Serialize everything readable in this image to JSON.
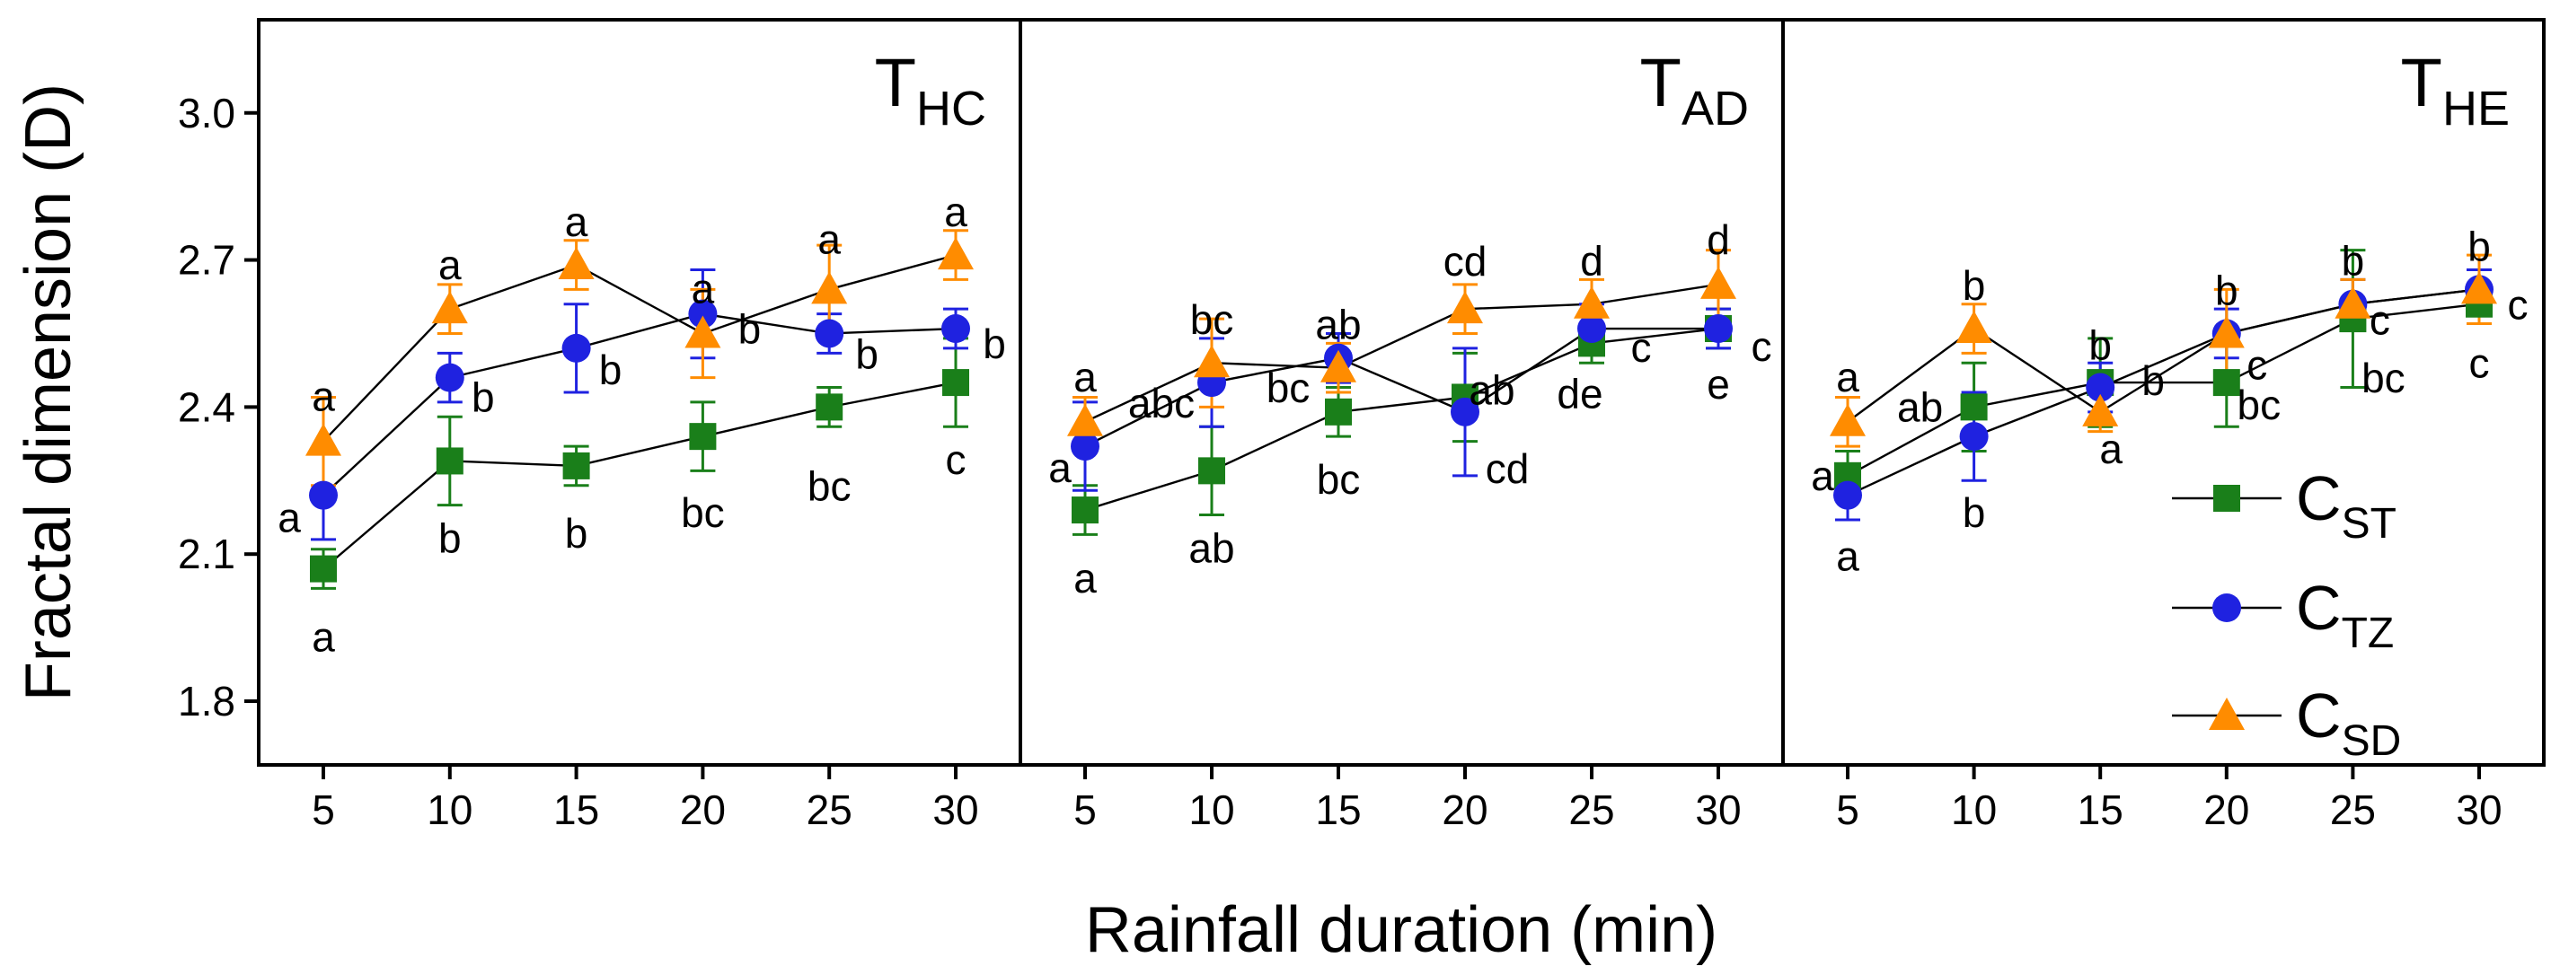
{
  "chart_data": {
    "type": "scatter",
    "ylabel": "Fractal dimension (D)",
    "xlabel": "Rainfall duration (min)",
    "ylim": [
      1.67,
      3.19
    ],
    "yticks": [
      1.8,
      2.1,
      2.4,
      2.7,
      3.0
    ],
    "ytick_labels": [
      "1.8",
      "2.1",
      "2.4",
      "2.7",
      "3.0"
    ],
    "x": [
      5,
      10,
      15,
      20,
      25,
      30
    ],
    "xtick_labels": [
      "5",
      "10",
      "15",
      "20",
      "25",
      "30"
    ],
    "legend": {
      "position": "bottom-right",
      "entries": [
        {
          "key": "CST",
          "base": "C",
          "sub": "ST"
        },
        {
          "key": "CTZ",
          "base": "C",
          "sub": "TZ"
        },
        {
          "key": "CSD",
          "base": "C",
          "sub": "SD"
        }
      ]
    },
    "styles": {
      "CST": {
        "color": "#1a7f1a",
        "marker": "square"
      },
      "CTZ": {
        "color": "#1f22e0",
        "marker": "circle"
      },
      "CSD": {
        "color": "#ff8c00",
        "marker": "triangle"
      }
    },
    "panels": [
      {
        "title_base": "T",
        "title_sub": "HC",
        "series": [
          {
            "key": "CST",
            "values": [
              2.07,
              2.29,
              2.28,
              2.34,
              2.4,
              2.45
            ],
            "errors": [
              0.04,
              0.09,
              0.04,
              0.07,
              0.04,
              0.09
            ],
            "labels": [
              "a",
              "b",
              "b",
              "bc",
              "bc",
              "c"
            ]
          },
          {
            "key": "CTZ",
            "values": [
              2.22,
              2.46,
              2.52,
              2.59,
              2.55,
              2.56
            ],
            "errors": [
              0.09,
              0.05,
              0.09,
              0.09,
              0.04,
              0.04
            ],
            "labels": [
              "a",
              "b",
              "b",
              "b",
              "b",
              "b"
            ]
          },
          {
            "key": "CSD",
            "values": [
              2.33,
              2.6,
              2.69,
              2.55,
              2.64,
              2.71
            ],
            "errors": [
              0.09,
              0.05,
              0.05,
              0.09,
              0.09,
              0.05
            ],
            "labels": [
              "a",
              "a",
              "a",
              "a",
              "a",
              "a"
            ]
          }
        ]
      },
      {
        "title_base": "T",
        "title_sub": "AD",
        "series": [
          {
            "key": "CST",
            "values": [
              2.19,
              2.27,
              2.39,
              2.42,
              2.53,
              2.56
            ],
            "errors": [
              0.05,
              0.09,
              0.05,
              0.09,
              0.04,
              0.04
            ],
            "labels": [
              "a",
              "ab",
              "bc",
              "ab",
              "de",
              "e"
            ]
          },
          {
            "key": "CTZ",
            "values": [
              2.32,
              2.45,
              2.5,
              2.39,
              2.56,
              2.56
            ],
            "errors": [
              0.09,
              0.09,
              0.05,
              0.13,
              0.05,
              0.04
            ],
            "labels": [
              "a",
              "abc",
              "bc",
              "cd",
              "c",
              "c"
            ]
          },
          {
            "key": "CSD",
            "values": [
              2.37,
              2.49,
              2.48,
              2.6,
              2.61,
              2.65
            ],
            "errors": [
              0.05,
              0.09,
              0.05,
              0.05,
              0.05,
              0.07
            ],
            "labels": [
              "a",
              "bc",
              "ab",
              "cd",
              "d",
              "d"
            ]
          }
        ]
      },
      {
        "title_base": "T",
        "title_sub": "HE",
        "series": [
          {
            "key": "CST",
            "values": [
              2.26,
              2.4,
              2.45,
              2.45,
              2.58,
              2.61
            ],
            "errors": [
              0.05,
              0.09,
              0.09,
              0.09,
              0.14,
              0.04
            ],
            "labels": [
              "a",
              "ab",
              "b",
              "bc",
              "bc",
              "c"
            ]
          },
          {
            "key": "CTZ",
            "values": [
              2.22,
              2.34,
              2.44,
              2.55,
              2.61,
              2.64
            ],
            "errors": [
              0.05,
              0.09,
              0.05,
              0.05,
              0.05,
              0.04
            ],
            "labels": [
              "a",
              "b",
              "b",
              "c",
              "c",
              "c"
            ]
          },
          {
            "key": "CSD",
            "values": [
              2.37,
              2.56,
              2.39,
              2.55,
              2.61,
              2.64
            ],
            "errors": [
              0.05,
              0.05,
              0.04,
              0.09,
              0.05,
              0.07
            ],
            "labels": [
              "a",
              "b",
              "a",
              "b",
              "b",
              "b"
            ]
          }
        ]
      }
    ]
  }
}
